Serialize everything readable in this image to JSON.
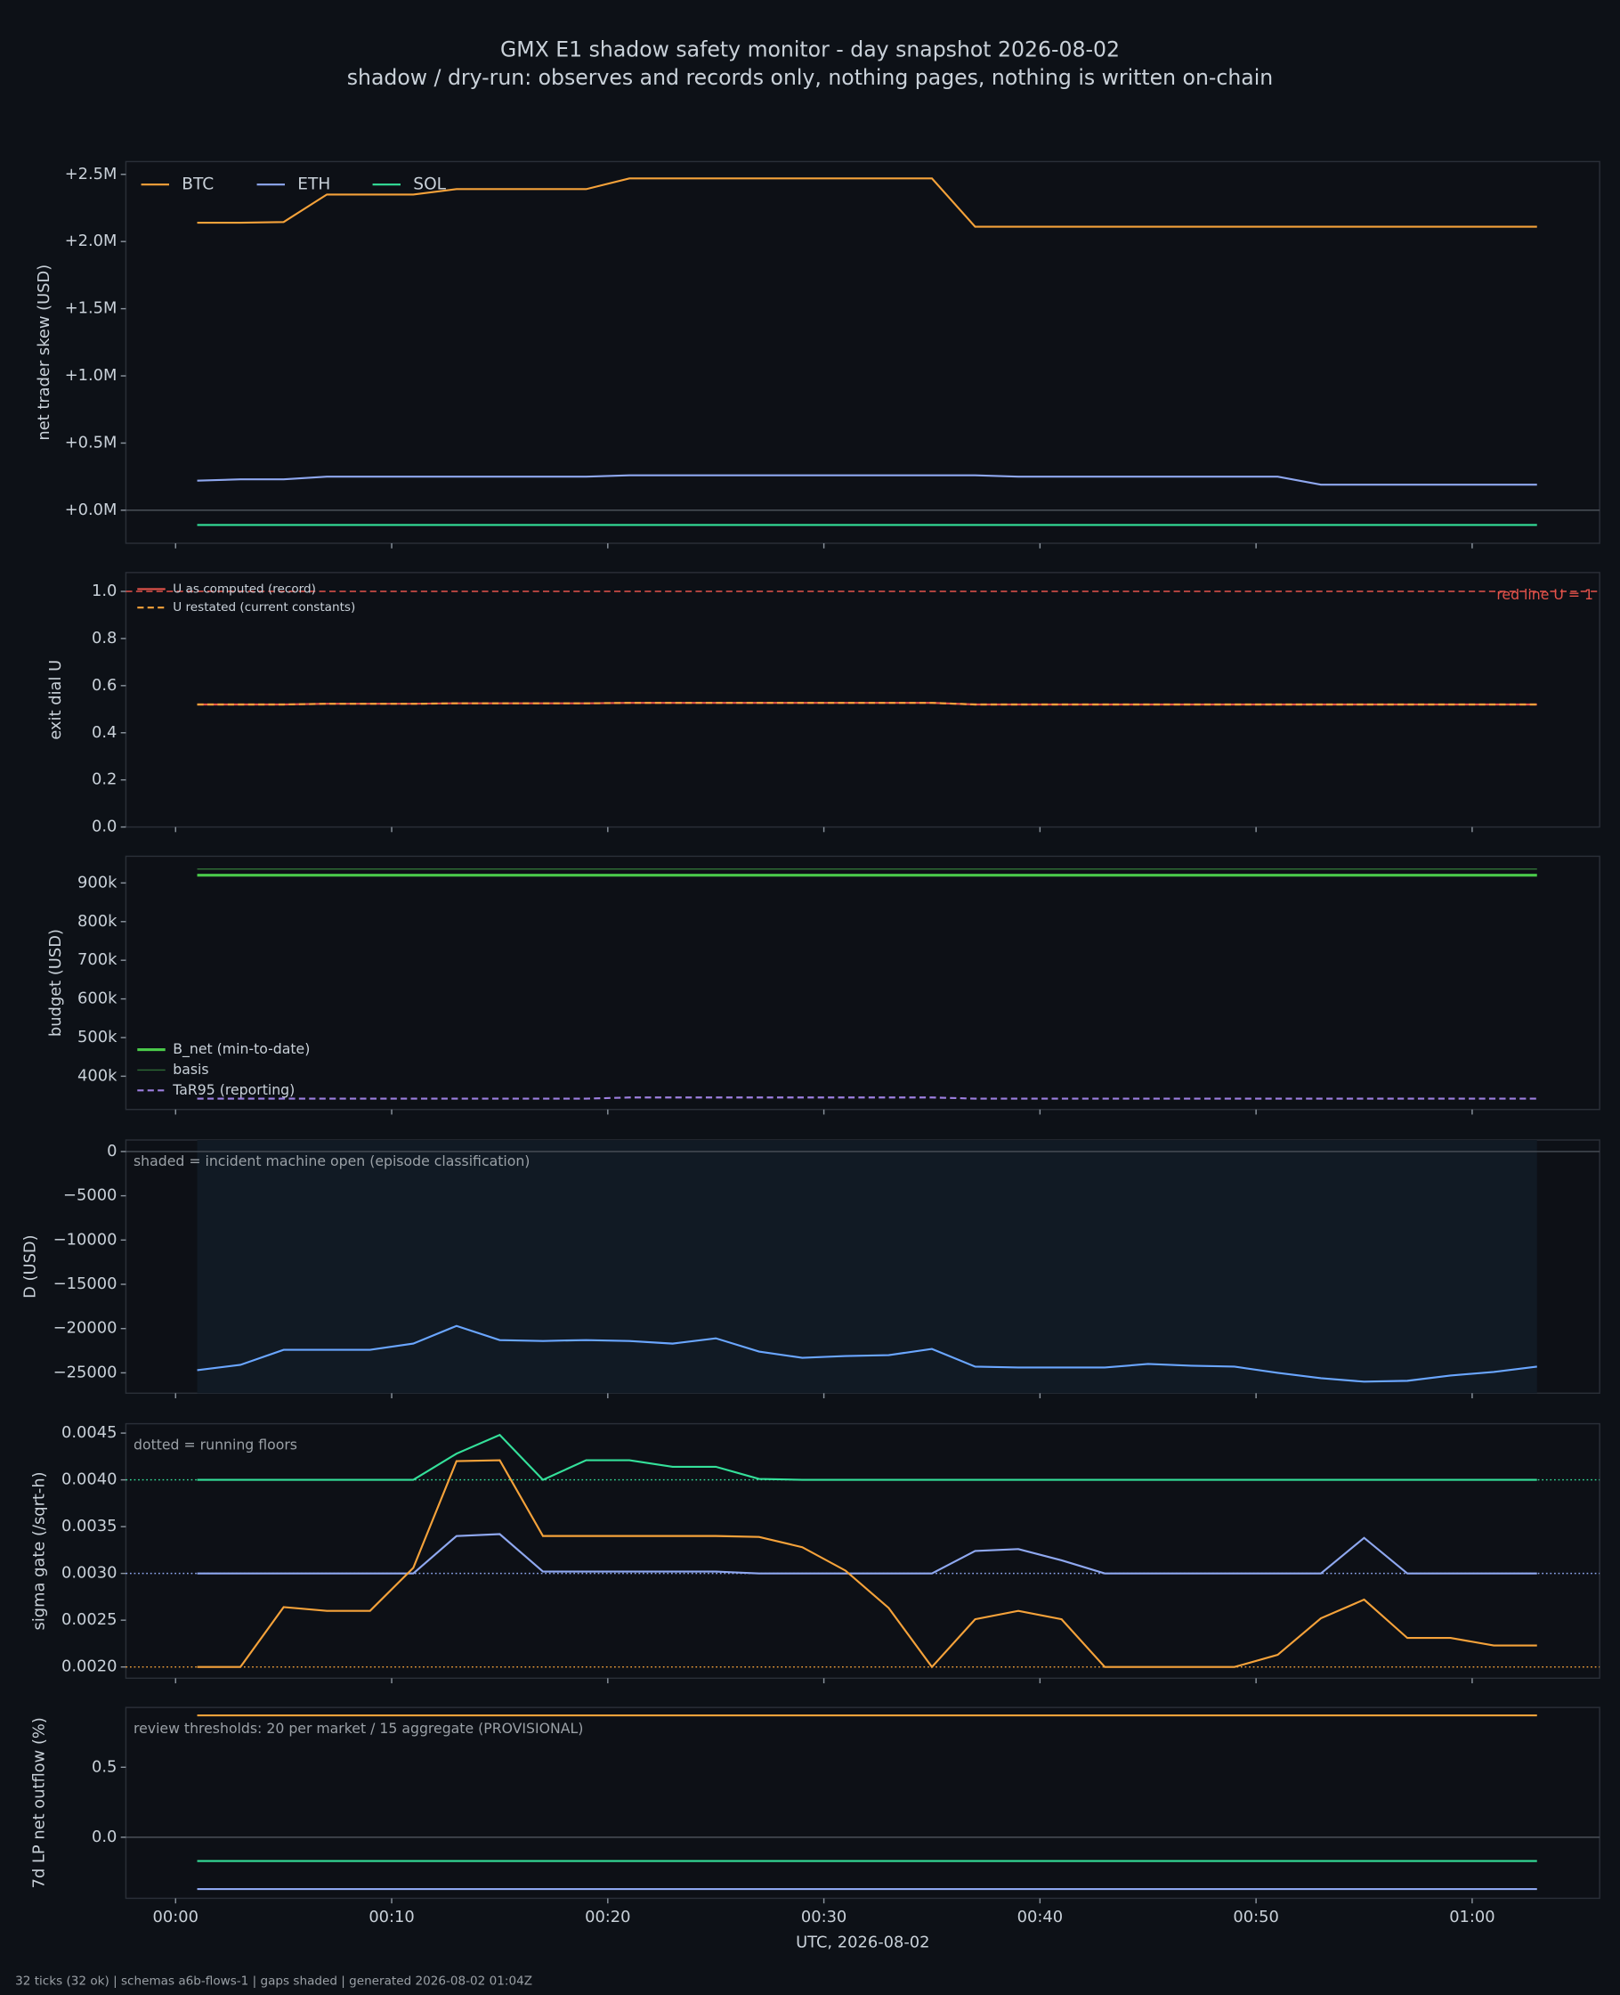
{
  "figure": {
    "title": "GMX E1 shadow safety monitor - day snapshot 2026-08-02",
    "subtitle": "shadow / dry-run: observes and records only, nothing pages, nothing is written on-chain",
    "footer": "32 ticks (32 ok) | schemas a6b-flows-1 | gaps shaded | generated 2026-08-02 01:04Z"
  },
  "chart_data": [
    {
      "type": "line",
      "ylabel": "net trader skew (USD)",
      "x": [
        1,
        3,
        5,
        7,
        9,
        11,
        13,
        15,
        17,
        19,
        21,
        23,
        25,
        27,
        29,
        31,
        33,
        35,
        37,
        39,
        41,
        43,
        45,
        47,
        49,
        51,
        53,
        55,
        57,
        59,
        61,
        63
      ],
      "xlim": [
        -2.3,
        65.9
      ],
      "xticks": [
        {
          "value": 0,
          "label": "00:00"
        },
        {
          "value": 10,
          "label": "00:10"
        },
        {
          "value": 20,
          "label": "00:20"
        },
        {
          "value": 30,
          "label": "00:30"
        },
        {
          "value": 40,
          "label": "00:40"
        },
        {
          "value": 50,
          "label": "00:50"
        },
        {
          "value": 60,
          "label": "01:00"
        }
      ],
      "ylim": [
        -246000,
        2595000
      ],
      "yticks": [
        {
          "value": 0,
          "label": "+0.0M"
        },
        {
          "value": 500000,
          "label": "+0.5M"
        },
        {
          "value": 1000000,
          "label": "+1.0M"
        },
        {
          "value": 1500000,
          "label": "+1.5M"
        },
        {
          "value": 2000000,
          "label": "+2.0M"
        },
        {
          "value": 2500000,
          "label": "+2.5M"
        }
      ],
      "legend": "upper left",
      "legend_ncol": 3,
      "series": [
        {
          "name": "BTC",
          "color": "#f5a23a",
          "values": [
            2140000,
            2140000,
            2145000,
            2350000,
            2350000,
            2350000,
            2390000,
            2390000,
            2390000,
            2390000,
            2470000,
            2470000,
            2470000,
            2470000,
            2470000,
            2470000,
            2470000,
            2470000,
            2110000,
            2110000,
            2110000,
            2110000,
            2110000,
            2110000,
            2110000,
            2110000,
            2110000,
            2110000,
            2110000,
            2110000,
            2110000,
            2110000
          ]
        },
        {
          "name": "ETH",
          "color": "#8fa8f0",
          "values": [
            220000,
            230000,
            230000,
            250000,
            250000,
            250000,
            250000,
            250000,
            250000,
            250000,
            260000,
            260000,
            260000,
            260000,
            260000,
            260000,
            260000,
            260000,
            260000,
            250000,
            250000,
            250000,
            250000,
            250000,
            250000,
            250000,
            190000,
            190000,
            190000,
            190000,
            190000,
            190000
          ]
        },
        {
          "name": "SOL",
          "color": "#34e09a",
          "values": [
            -110000,
            -110000,
            -110000,
            -110000,
            -110000,
            -110000,
            -110000,
            -110000,
            -110000,
            -110000,
            -110000,
            -110000,
            -110000,
            -110000,
            -110000,
            -110000,
            -110000,
            -110000,
            -110000,
            -110000,
            -110000,
            -110000,
            -110000,
            -110000,
            -110000,
            -110000,
            -110000,
            -110000,
            -110000,
            -110000,
            -110000,
            -110000
          ]
        }
      ]
    },
    {
      "type": "line",
      "ylabel": "exit dial U",
      "x": [
        1,
        3,
        5,
        7,
        9,
        11,
        13,
        15,
        17,
        19,
        21,
        23,
        25,
        27,
        29,
        31,
        33,
        35,
        37,
        39,
        41,
        43,
        45,
        47,
        49,
        51,
        53,
        55,
        57,
        59,
        61,
        63
      ],
      "xlim": [
        -2.3,
        65.9
      ],
      "xticks": [
        0,
        10,
        20,
        30,
        40,
        50,
        60
      ],
      "ylim": [
        0,
        1.08
      ],
      "yticks": [
        {
          "value": 0,
          "label": "0.0"
        },
        {
          "value": 0.2,
          "label": "0.2"
        },
        {
          "value": 0.4,
          "label": "0.4"
        },
        {
          "value": 0.6,
          "label": "0.6"
        },
        {
          "value": 0.8,
          "label": "0.8"
        },
        {
          "value": 1,
          "label": "1.0"
        }
      ],
      "legend": "upper left",
      "legend_ncol": 1,
      "hlines": [
        {
          "value": 1,
          "color": "#e5534b",
          "style": "dashed",
          "label": "red line U = 1"
        }
      ],
      "series": [
        {
          "name": "U as computed (record)",
          "color": "#e5534b",
          "values": [
            0.52,
            0.52,
            0.52,
            0.523,
            0.523,
            0.523,
            0.525,
            0.525,
            0.525,
            0.525,
            0.527,
            0.527,
            0.527,
            0.527,
            0.527,
            0.527,
            0.527,
            0.527,
            0.52,
            0.52,
            0.52,
            0.52,
            0.52,
            0.52,
            0.52,
            0.52,
            0.52,
            0.52,
            0.52,
            0.52,
            0.52,
            0.52
          ]
        },
        {
          "name": "U restated (current constants)",
          "color": "#f5a23a",
          "style": "dashed",
          "values": [
            0.52,
            0.52,
            0.52,
            0.523,
            0.523,
            0.523,
            0.525,
            0.525,
            0.525,
            0.525,
            0.527,
            0.527,
            0.527,
            0.527,
            0.527,
            0.527,
            0.527,
            0.527,
            0.52,
            0.52,
            0.52,
            0.52,
            0.52,
            0.52,
            0.52,
            0.52,
            0.52,
            0.52,
            0.52,
            0.52,
            0.52,
            0.52
          ]
        }
      ]
    },
    {
      "type": "line",
      "ylabel": "budget (USD)",
      "x": [
        1,
        3,
        5,
        7,
        9,
        11,
        13,
        15,
        17,
        19,
        21,
        23,
        25,
        27,
        29,
        31,
        33,
        35,
        37,
        39,
        41,
        43,
        45,
        47,
        49,
        51,
        53,
        55,
        57,
        59,
        61,
        63
      ],
      "xlim": [
        -2.3,
        65.9
      ],
      "xticks": [
        0,
        10,
        20,
        30,
        40,
        50,
        60
      ],
      "ylim": [
        314000,
        969000
      ],
      "yticks": [
        {
          "value": 400000,
          "label": "400k"
        },
        {
          "value": 500000,
          "label": "500k"
        },
        {
          "value": 600000,
          "label": "600k"
        },
        {
          "value": 700000,
          "label": "700k"
        },
        {
          "value": 800000,
          "label": "800k"
        },
        {
          "value": 900000,
          "label": "900k"
        }
      ],
      "legend": "lower left",
      "legend_ncol": 1,
      "series": [
        {
          "name": "B_net (min-to-date)",
          "color": "#4ac94a",
          "width": 2.2,
          "values": [
            920000,
            920000,
            920000,
            920000,
            920000,
            920000,
            920000,
            920000,
            920000,
            920000,
            920000,
            920000,
            920000,
            920000,
            920000,
            920000,
            920000,
            920000,
            920000,
            920000,
            920000,
            920000,
            920000,
            920000,
            920000,
            920000,
            920000,
            920000,
            920000,
            920000,
            920000,
            920000
          ]
        },
        {
          "name": "basis",
          "color": "#2e6b35",
          "width": 1,
          "values": [
            936000,
            936000,
            936000,
            936000,
            936000,
            936000,
            936000,
            936000,
            936000,
            936000,
            936000,
            936000,
            936000,
            936000,
            936000,
            936000,
            936000,
            936000,
            936000,
            936000,
            936000,
            936000,
            936000,
            936000,
            936000,
            936000,
            936000,
            936000,
            936000,
            936000,
            936000,
            936000
          ]
        },
        {
          "name": "TaR95 (reporting)",
          "color": "#9d7fe0",
          "style": "dashed",
          "values": [
            342000,
            342000,
            342000,
            342000,
            342000,
            342000,
            342000,
            342000,
            342000,
            342000,
            345000,
            345000,
            345000,
            345000,
            345000,
            345000,
            345000,
            345000,
            342000,
            342000,
            342000,
            342000,
            342000,
            342000,
            342000,
            342000,
            342000,
            342000,
            342000,
            342000,
            342000,
            342000
          ]
        }
      ]
    },
    {
      "type": "line",
      "ylabel": "D (USD)",
      "annotation": "shaded = incident machine open (episode classification)",
      "shaded": true,
      "x": [
        1,
        3,
        5,
        7,
        9,
        11,
        13,
        15,
        17,
        19,
        21,
        23,
        25,
        27,
        29,
        31,
        33,
        35,
        37,
        39,
        41,
        43,
        45,
        47,
        49,
        51,
        53,
        55,
        57,
        59,
        61,
        63
      ],
      "xlim": [
        -2.3,
        65.9
      ],
      "xticks": [
        0,
        10,
        20,
        30,
        40,
        50,
        60
      ],
      "ylim": [
        -27300,
        1300
      ],
      "yticks": [
        {
          "value": -25000,
          "label": "−25000"
        },
        {
          "value": -20000,
          "label": "−20000"
        },
        {
          "value": -15000,
          "label": "−15000"
        },
        {
          "value": -10000,
          "label": "−10000"
        },
        {
          "value": -5000,
          "label": "−5000"
        },
        0
      ],
      "series": [
        {
          "color": "#6aa6ff",
          "values": [
            -24700,
            -24100,
            -22400,
            -22400,
            -22400,
            -21700,
            -19700,
            -21300,
            -21400,
            -21300,
            -21400,
            -21700,
            -21100,
            -22600,
            -23300,
            -23100,
            -23000,
            -22300,
            -24300,
            -24400,
            -24400,
            -24400,
            -24000,
            -24200,
            -24300,
            -25000,
            -25600,
            -26000,
            -25900,
            -25300,
            -24900,
            -24300
          ]
        }
      ]
    },
    {
      "type": "line",
      "ylabel": "sigma gate (/sqrt-h)",
      "annotation": "dotted = running floors",
      "x": [
        1,
        3,
        5,
        7,
        9,
        11,
        13,
        15,
        17,
        19,
        21,
        23,
        25,
        27,
        29,
        31,
        33,
        35,
        37,
        39,
        41,
        43,
        45,
        47,
        49,
        51,
        53,
        55,
        57,
        59,
        61,
        63
      ],
      "xlim": [
        -2.3,
        65.9
      ],
      "xticks": [
        0,
        10,
        20,
        30,
        40,
        50,
        60
      ],
      "ylim": [
        0.00188,
        0.0046
      ],
      "yticks": [
        {
          "value": 0.002,
          "label": "0.0020"
        },
        0.0025,
        {
          "value": 0.003,
          "label": "0.0030"
        },
        0.0035,
        {
          "value": 0.004,
          "label": "0.0040"
        },
        0.0045
      ],
      "hlines": [
        {
          "value": 0.004,
          "color": "#34e09a",
          "style": "dotted"
        },
        {
          "value": 0.003,
          "color": "#8fa8f0",
          "style": "dotted"
        },
        {
          "value": 0.002,
          "color": "#f5a23a",
          "style": "dotted"
        }
      ],
      "series": [
        {
          "color": "#34e09a",
          "values": [
            0.004,
            0.004,
            0.004,
            0.004,
            0.004,
            0.004,
            0.00428,
            0.00448,
            0.004,
            0.00421,
            0.00421,
            0.00414,
            0.00414,
            0.00401,
            0.004,
            0.004,
            0.004,
            0.004,
            0.004,
            0.004,
            0.004,
            0.004,
            0.004,
            0.004,
            0.004,
            0.004,
            0.004,
            0.004,
            0.004,
            0.004,
            0.004,
            0.004
          ]
        },
        {
          "color": "#8fa8f0",
          "values": [
            0.003,
            0.003,
            0.003,
            0.003,
            0.003,
            0.003,
            0.0034,
            0.00342,
            0.00302,
            0.00302,
            0.00302,
            0.00302,
            0.00302,
            0.003,
            0.003,
            0.003,
            0.003,
            0.003,
            0.00324,
            0.00326,
            0.00314,
            0.003,
            0.003,
            0.003,
            0.003,
            0.003,
            0.003,
            0.00338,
            0.003,
            0.003,
            0.003,
            0.003
          ]
        },
        {
          "color": "#f5a23a",
          "values": [
            0.002,
            0.002,
            0.00264,
            0.0026,
            0.0026,
            0.00306,
            0.0042,
            0.00421,
            0.0034,
            0.0034,
            0.0034,
            0.0034,
            0.0034,
            0.00339,
            0.00328,
            0.00303,
            0.00263,
            0.002,
            0.00251,
            0.0026,
            0.00251,
            0.002,
            0.002,
            0.002,
            0.002,
            0.00213,
            0.00252,
            0.00272,
            0.00231,
            0.00231,
            0.00223,
            0.00223
          ]
        }
      ]
    },
    {
      "type": "line",
      "ylabel": "7d LP net outflow (%)",
      "xlabel": "UTC, 2026-08-02",
      "annotation": "review thresholds: 20 per market / 15 aggregate (PROVISIONAL)",
      "x": [
        1,
        3,
        5,
        7,
        9,
        11,
        13,
        15,
        17,
        19,
        21,
        23,
        25,
        27,
        29,
        31,
        33,
        35,
        37,
        39,
        41,
        43,
        45,
        47,
        49,
        51,
        53,
        55,
        57,
        59,
        61,
        63
      ],
      "xlim": [
        -2.3,
        65.9
      ],
      "xticks": [
        {
          "value": 0,
          "label": "00:00"
        },
        {
          "value": 10,
          "label": "00:10"
        },
        {
          "value": 20,
          "label": "00:20"
        },
        {
          "value": 30,
          "label": "00:30"
        },
        {
          "value": 40,
          "label": "00:40"
        },
        {
          "value": 50,
          "label": "00:50"
        },
        {
          "value": 60,
          "label": "01:00"
        }
      ],
      "ylim": [
        -0.436,
        0.927
      ],
      "yticks": [
        {
          "value": 0,
          "label": "0.0"
        },
        0.5
      ],
      "series": [
        {
          "color": "#f5a23a",
          "values": [
            0.87,
            0.87,
            0.87,
            0.87,
            0.87,
            0.87,
            0.87,
            0.87,
            0.87,
            0.87,
            0.87,
            0.87,
            0.87,
            0.87,
            0.87,
            0.87,
            0.87,
            0.87,
            0.87,
            0.87,
            0.87,
            0.87,
            0.87,
            0.87,
            0.87,
            0.87,
            0.87,
            0.87,
            0.87,
            0.87,
            0.87,
            0.87
          ]
        },
        {
          "color": "#34e09a",
          "values": [
            -0.17,
            -0.17,
            -0.17,
            -0.17,
            -0.17,
            -0.17,
            -0.17,
            -0.17,
            -0.17,
            -0.17,
            -0.17,
            -0.17,
            -0.17,
            -0.17,
            -0.17,
            -0.17,
            -0.17,
            -0.17,
            -0.17,
            -0.17,
            -0.17,
            -0.17,
            -0.17,
            -0.17,
            -0.17,
            -0.17,
            -0.17,
            -0.17,
            -0.17,
            -0.17,
            -0.17,
            -0.17
          ]
        },
        {
          "color": "#8fa8f0",
          "values": [
            -0.37,
            -0.37,
            -0.37,
            -0.37,
            -0.37,
            -0.37,
            -0.37,
            -0.37,
            -0.37,
            -0.37,
            -0.37,
            -0.37,
            -0.37,
            -0.37,
            -0.37,
            -0.37,
            -0.37,
            -0.37,
            -0.37,
            -0.37,
            -0.37,
            -0.37,
            -0.37,
            -0.37,
            -0.37,
            -0.37,
            -0.37,
            -0.37,
            -0.37,
            -0.37,
            -0.37,
            -0.37
          ]
        }
      ]
    }
  ]
}
